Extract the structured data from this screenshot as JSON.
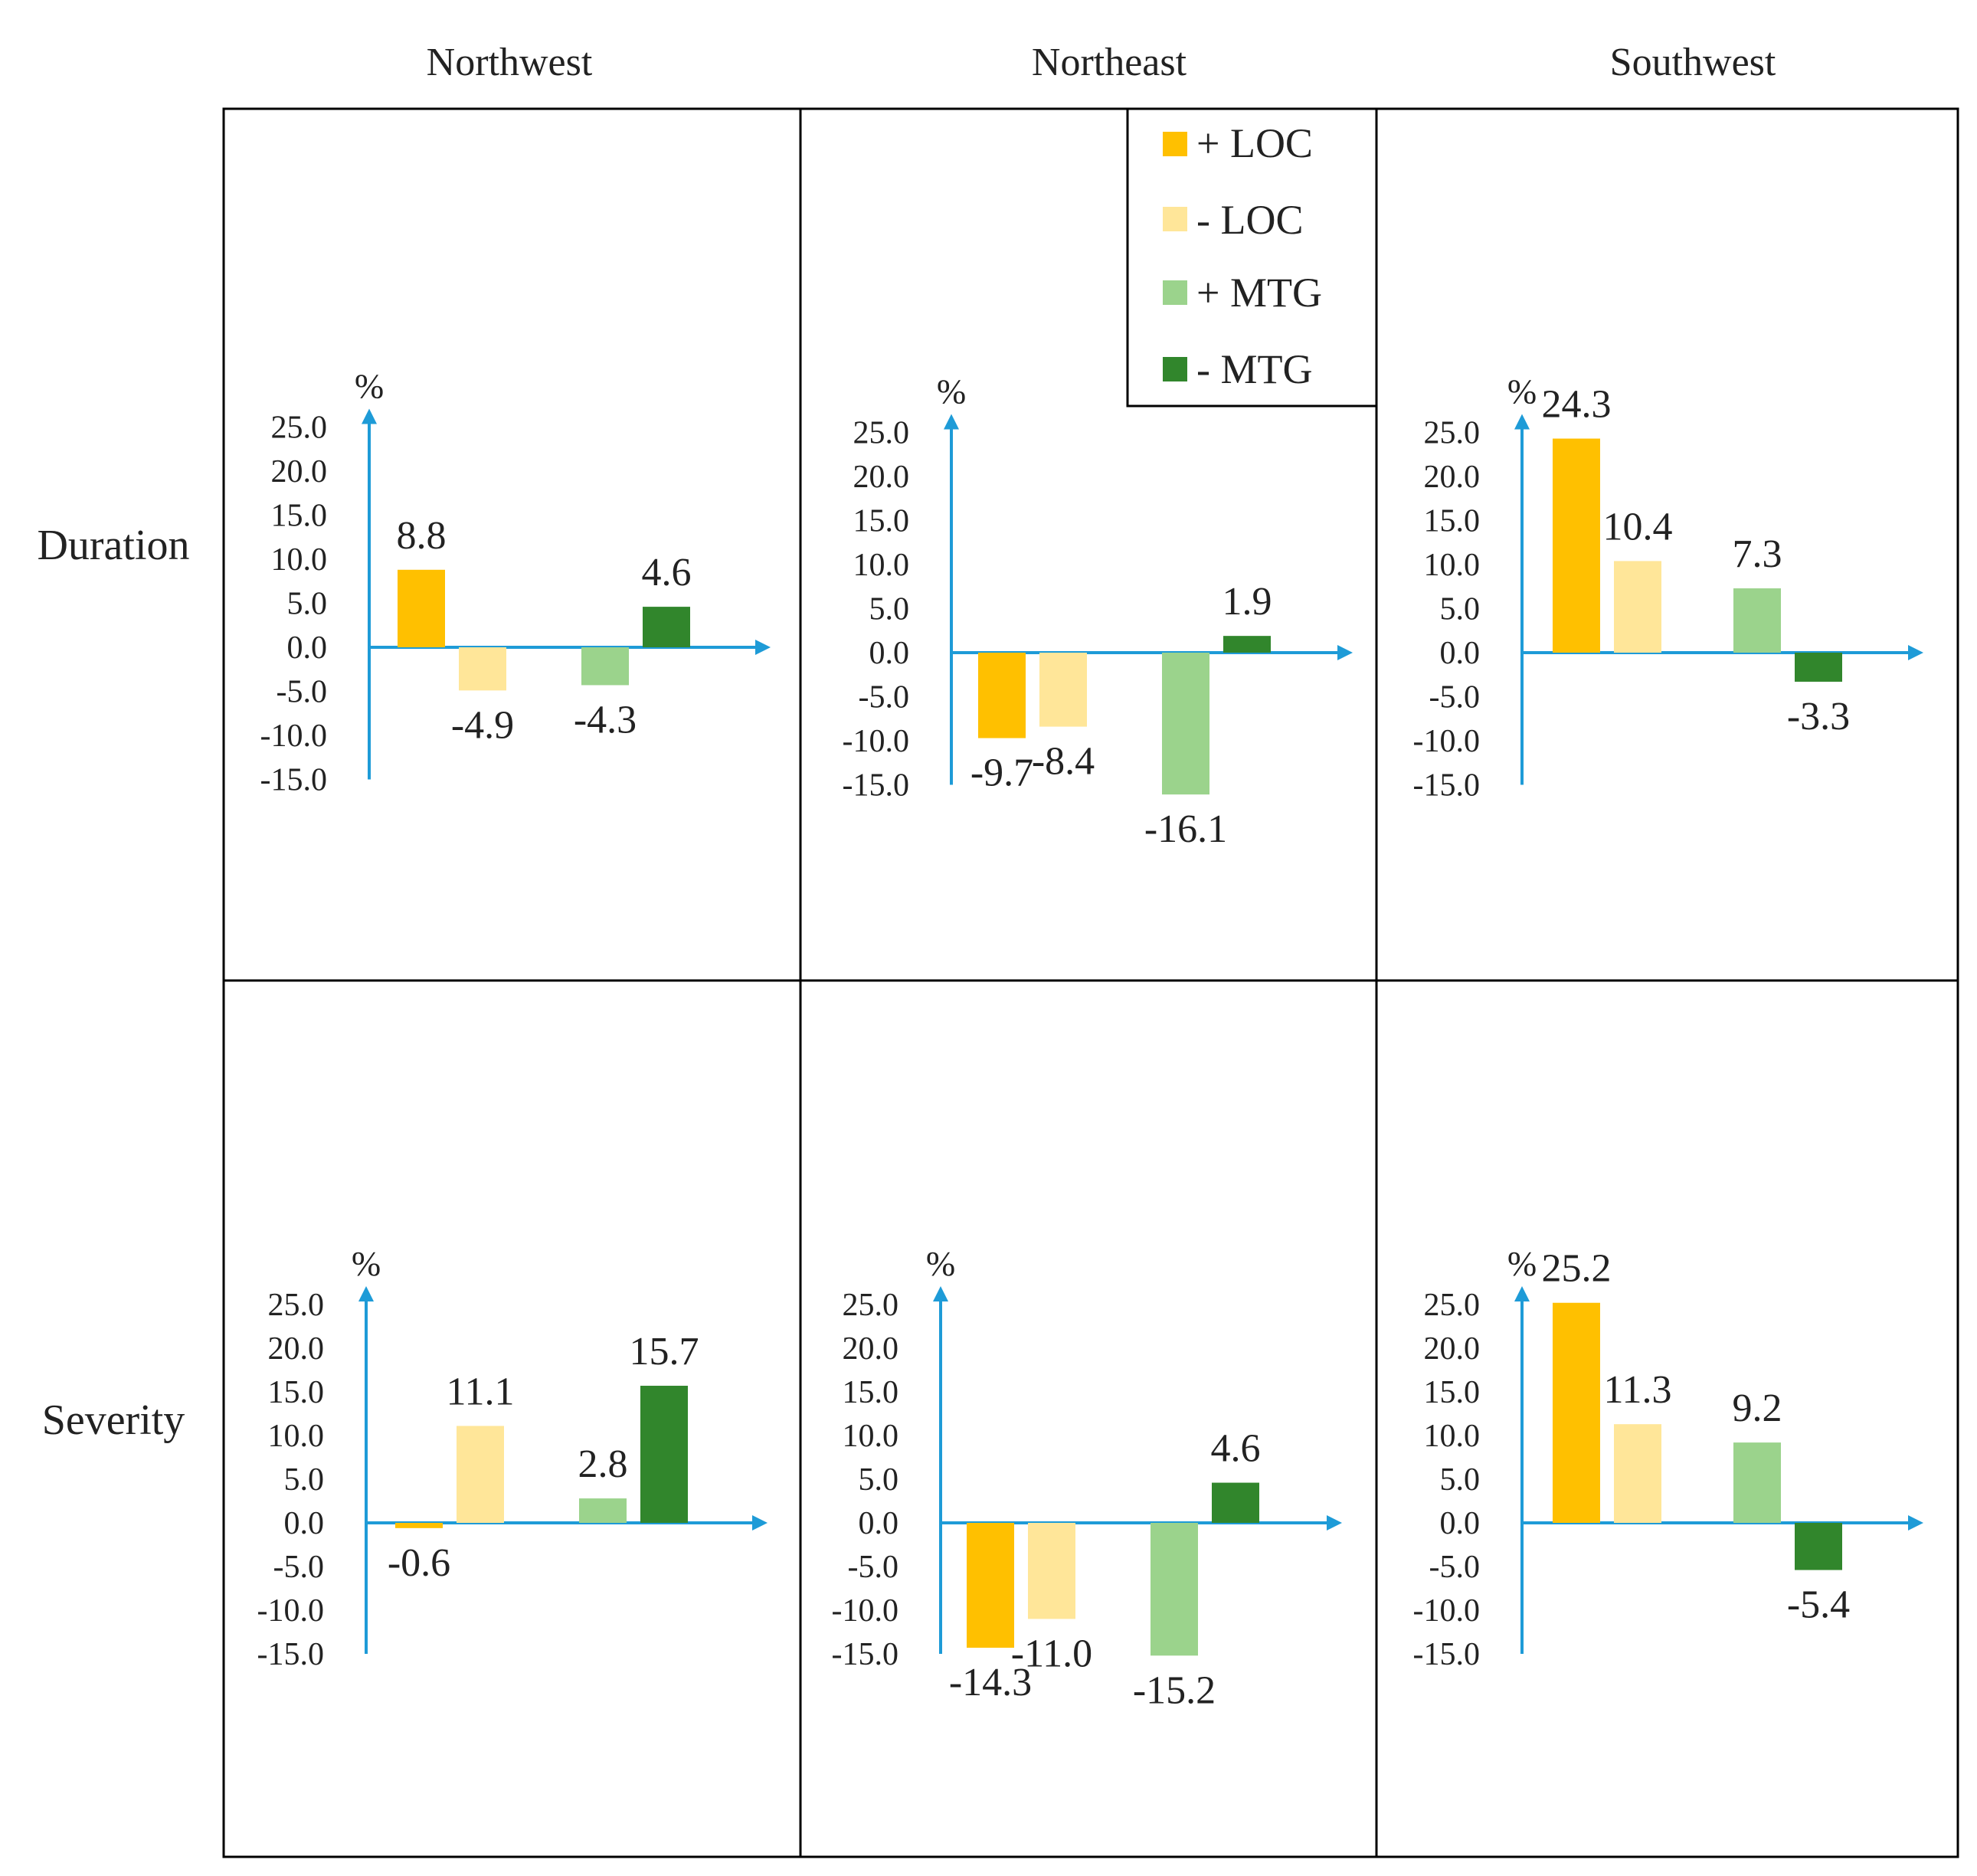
{
  "figure": {
    "column_titles": [
      "Northwest",
      "Northeast",
      "Southwest"
    ],
    "row_titles": [
      "Duration",
      "Severity"
    ],
    "colors": {
      "+ LOC": "#FFC000",
      "- LOC": "#FFE699",
      "+ MTG": "#9BD38C",
      "- MTG": "#31862C",
      "axis": "#1E9BD7",
      "border": "#000000"
    }
  },
  "legend": {
    "items": [
      {
        "label": "+ LOC",
        "color": "#FFC000"
      },
      {
        "label": "- LOC",
        "color": "#FFE699"
      },
      {
        "label": "+ MTG",
        "color": "#9BD38C"
      },
      {
        "label": "- MTG",
        "color": "#31862C"
      }
    ]
  },
  "chart_data": [
    {
      "type": "bar",
      "row": "Duration",
      "column": "Northwest",
      "unit": "%",
      "series": [
        "+ LOC",
        "- LOC",
        "+ MTG",
        "- MTG"
      ],
      "values": [
        8.8,
        -4.9,
        -4.3,
        4.6
      ],
      "labels": [
        "8.8",
        "-4.9",
        "-4.3",
        "4.6"
      ],
      "yticks": [
        "25.0",
        "20.0",
        "15.0",
        "10.0",
        "5.0",
        "0.0",
        "-5.0",
        "-10.0",
        "-15.0"
      ],
      "ylim": [
        -15,
        25
      ]
    },
    {
      "type": "bar",
      "row": "Duration",
      "column": "Northeast",
      "unit": "%",
      "series": [
        "+ LOC",
        "- LOC",
        "+ MTG",
        "- MTG"
      ],
      "values": [
        -9.7,
        -8.4,
        -16.1,
        1.9
      ],
      "labels": [
        "-9.7",
        "-8.4",
        "-16.1",
        "1.9"
      ],
      "yticks": [
        "25.0",
        "20.0",
        "15.0",
        "10.0",
        "5.0",
        "0.0",
        "-5.0",
        "-10.0",
        "-15.0"
      ],
      "ylim": [
        -15,
        25
      ]
    },
    {
      "type": "bar",
      "row": "Duration",
      "column": "Southwest",
      "unit": "%",
      "series": [
        "+ LOC",
        "- LOC",
        "+ MTG",
        "- MTG"
      ],
      "values": [
        24.3,
        10.4,
        7.3,
        -3.3
      ],
      "labels": [
        "24.3",
        "10.4",
        "7.3",
        "-3.3"
      ],
      "yticks": [
        "25.0",
        "20.0",
        "15.0",
        "10.0",
        "5.0",
        "0.0",
        "-5.0",
        "-10.0",
        "-15.0"
      ],
      "ylim": [
        -15,
        25
      ]
    },
    {
      "type": "bar",
      "row": "Severity",
      "column": "Northwest",
      "unit": "%",
      "series": [
        "+ LOC",
        "- LOC",
        "+ MTG",
        "- MTG"
      ],
      "values": [
        -0.6,
        11.1,
        2.8,
        15.7
      ],
      "labels": [
        "-0.6",
        "11.1",
        "2.8",
        "15.7"
      ],
      "yticks": [
        "25.0",
        "20.0",
        "15.0",
        "10.0",
        "5.0",
        "0.0",
        "-5.0",
        "-10.0",
        "-15.0"
      ],
      "ylim": [
        -15,
        25
      ]
    },
    {
      "type": "bar",
      "row": "Severity",
      "column": "Northeast",
      "unit": "%",
      "series": [
        "+ LOC",
        "- LOC",
        "+ MTG",
        "- MTG"
      ],
      "values": [
        -14.3,
        -11.0,
        -15.2,
        4.6
      ],
      "labels": [
        "-14.3",
        "-11.0",
        "-15.2",
        "4.6"
      ],
      "yticks": [
        "25.0",
        "20.0",
        "15.0",
        "10.0",
        "5.0",
        "0.0",
        "-5.0",
        "-10.0",
        "-15.0"
      ],
      "ylim": [
        -15,
        25
      ]
    },
    {
      "type": "bar",
      "row": "Severity",
      "column": "Southwest",
      "unit": "%",
      "series": [
        "+ LOC",
        "- LOC",
        "+ MTG",
        "- MTG"
      ],
      "values": [
        25.2,
        11.3,
        9.2,
        -5.4
      ],
      "labels": [
        "25.2",
        "11.3",
        "9.2",
        "-5.4"
      ],
      "yticks": [
        "25.0",
        "20.0",
        "15.0",
        "10.0",
        "5.0",
        "0.0",
        "-5.0",
        "-10.0",
        "-15.0"
      ],
      "ylim": [
        -15,
        25
      ]
    }
  ]
}
